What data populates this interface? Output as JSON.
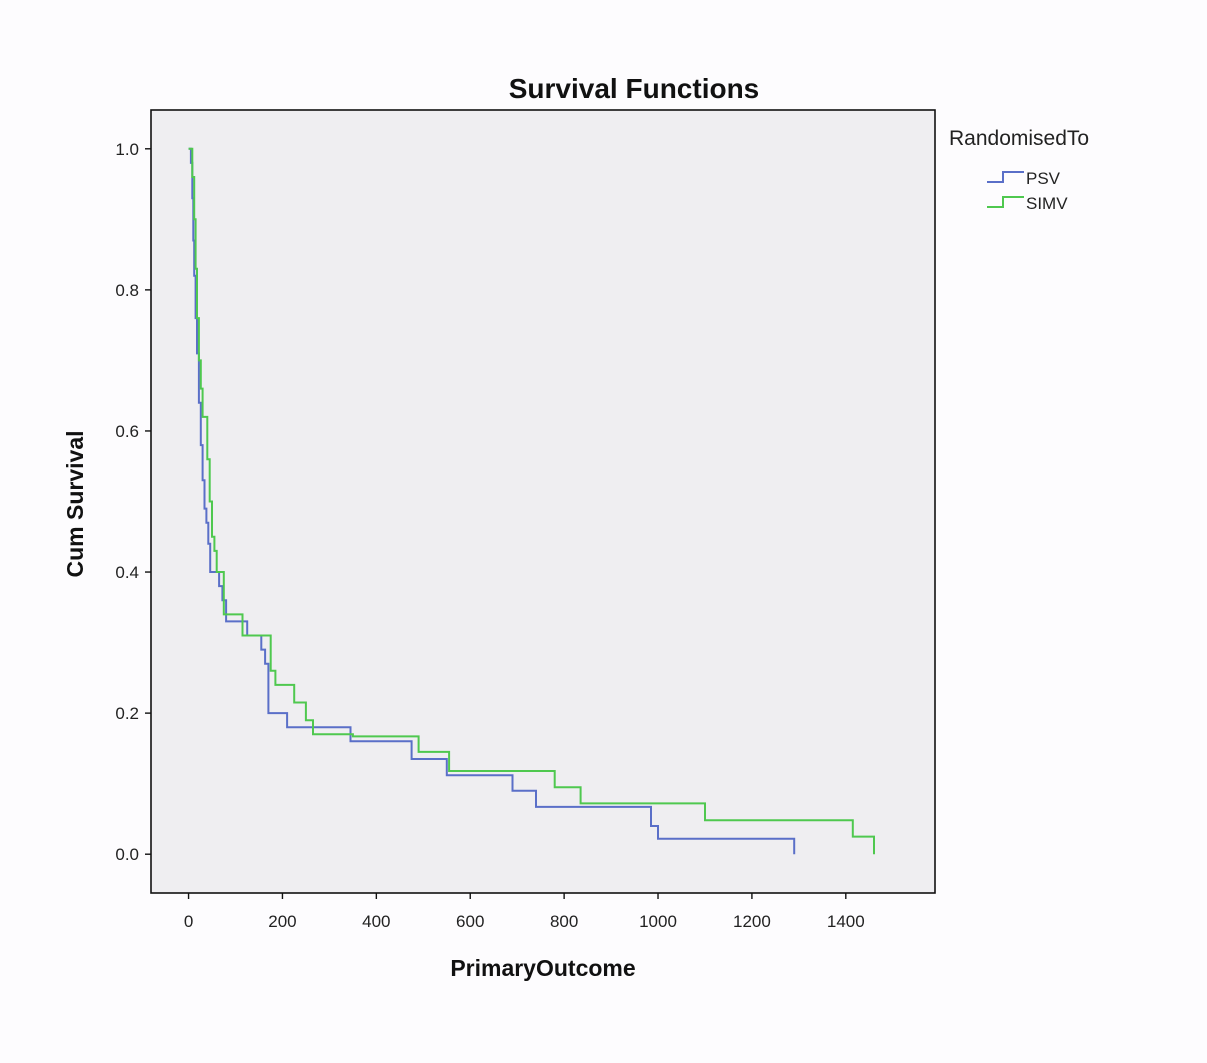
{
  "chart_data": {
    "type": "line",
    "step": true,
    "title": "Survival Functions",
    "xlabel": "PrimaryOutcome",
    "ylabel": "Cum Survival",
    "xlim": [
      -80,
      1590
    ],
    "ylim": [
      -0.055,
      1.055
    ],
    "x_ticks": [
      0,
      200,
      400,
      600,
      800,
      1000,
      1200,
      1400
    ],
    "x_tick_labels": [
      "0",
      "200",
      "400",
      "600",
      "800",
      "1000",
      "1200",
      "1400"
    ],
    "y_ticks": [
      0.0,
      0.2,
      0.4,
      0.6,
      0.8,
      1.0
    ],
    "y_tick_labels": [
      "0.0",
      "0.2",
      "0.4",
      "0.6",
      "0.8",
      "1.0"
    ],
    "grid": false,
    "background": "#efeef1",
    "legend": {
      "title": "RandomisedTo",
      "placement": "right-top-outside"
    },
    "series": [
      {
        "name": "PSV",
        "color": "#5a6fc8",
        "points": [
          [
            0,
            1.0
          ],
          [
            5,
            0.98
          ],
          [
            8,
            0.93
          ],
          [
            10,
            0.87
          ],
          [
            12,
            0.82
          ],
          [
            15,
            0.76
          ],
          [
            18,
            0.71
          ],
          [
            22,
            0.64
          ],
          [
            26,
            0.58
          ],
          [
            30,
            0.53
          ],
          [
            34,
            0.49
          ],
          [
            38,
            0.47
          ],
          [
            42,
            0.44
          ],
          [
            46,
            0.4
          ],
          [
            65,
            0.38
          ],
          [
            72,
            0.36
          ],
          [
            80,
            0.33
          ],
          [
            125,
            0.31
          ],
          [
            155,
            0.29
          ],
          [
            163,
            0.27
          ],
          [
            170,
            0.2
          ],
          [
            210,
            0.18
          ],
          [
            345,
            0.16
          ],
          [
            475,
            0.135
          ],
          [
            550,
            0.112
          ],
          [
            690,
            0.09
          ],
          [
            740,
            0.067
          ],
          [
            985,
            0.04
          ],
          [
            1000,
            0.022
          ],
          [
            1290,
            0.022
          ],
          [
            1290,
            0.0
          ]
        ]
      },
      {
        "name": "SIMV",
        "color": "#4fc84f",
        "points": [
          [
            0,
            1.0
          ],
          [
            8,
            0.96
          ],
          [
            12,
            0.9
          ],
          [
            15,
            0.83
          ],
          [
            18,
            0.76
          ],
          [
            22,
            0.7
          ],
          [
            26,
            0.66
          ],
          [
            30,
            0.62
          ],
          [
            40,
            0.56
          ],
          [
            45,
            0.5
          ],
          [
            50,
            0.45
          ],
          [
            55,
            0.43
          ],
          [
            60,
            0.4
          ],
          [
            75,
            0.34
          ],
          [
            115,
            0.31
          ],
          [
            175,
            0.26
          ],
          [
            185,
            0.24
          ],
          [
            225,
            0.215
          ],
          [
            250,
            0.19
          ],
          [
            265,
            0.17
          ],
          [
            340,
            0.17
          ],
          [
            350,
            0.167
          ],
          [
            490,
            0.145
          ],
          [
            555,
            0.118
          ],
          [
            780,
            0.095
          ],
          [
            835,
            0.072
          ],
          [
            1100,
            0.048
          ],
          [
            1415,
            0.025
          ],
          [
            1460,
            0.025
          ],
          [
            1460,
            0.0
          ]
        ]
      }
    ]
  }
}
